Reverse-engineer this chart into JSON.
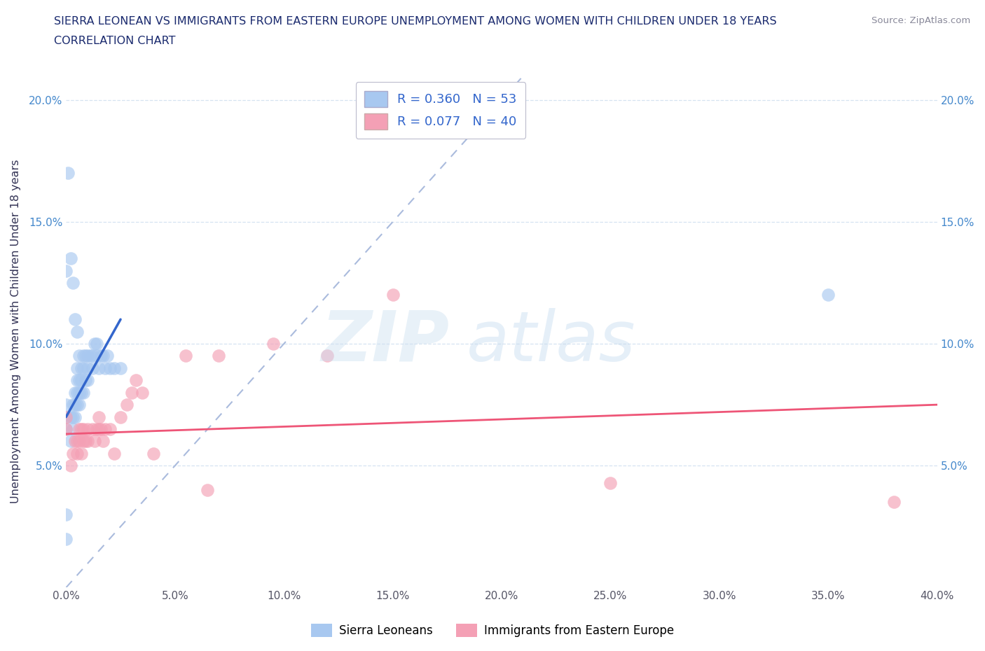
{
  "title_line1": "SIERRA LEONEAN VS IMMIGRANTS FROM EASTERN EUROPE UNEMPLOYMENT AMONG WOMEN WITH CHILDREN UNDER 18 YEARS",
  "title_line2": "CORRELATION CHART",
  "source": "Source: ZipAtlas.com",
  "ylabel": "Unemployment Among Women with Children Under 18 years",
  "xlim": [
    0.0,
    0.4
  ],
  "ylim": [
    0.0,
    0.21
  ],
  "xticks": [
    0.0,
    0.05,
    0.1,
    0.15,
    0.2,
    0.25,
    0.3,
    0.35,
    0.4
  ],
  "yticks": [
    0.05,
    0.1,
    0.15,
    0.2
  ],
  "ytick_labels": [
    "5.0%",
    "10.0%",
    "15.0%",
    "20.0%"
  ],
  "xtick_labels": [
    "0.0%",
    "5.0%",
    "10.0%",
    "15.0%",
    "20.0%",
    "25.0%",
    "30.0%",
    "35.0%",
    "40.0%"
  ],
  "blue_R": 0.36,
  "blue_N": 53,
  "pink_R": 0.077,
  "pink_N": 40,
  "blue_color": "#a8c8f0",
  "pink_color": "#f4a0b5",
  "blue_line_color": "#3366cc",
  "pink_line_color": "#ee5577",
  "diagonal_color": "#aabbdd",
  "legend_label_blue": "Sierra Leoneans",
  "legend_label_pink": "Immigrants from Eastern Europe",
  "blue_scatter_x": [
    0.0,
    0.0,
    0.0,
    0.0,
    0.0,
    0.002,
    0.002,
    0.003,
    0.003,
    0.003,
    0.004,
    0.004,
    0.004,
    0.005,
    0.005,
    0.005,
    0.005,
    0.006,
    0.006,
    0.006,
    0.007,
    0.007,
    0.007,
    0.008,
    0.008,
    0.008,
    0.009,
    0.009,
    0.01,
    0.01,
    0.01,
    0.011,
    0.012,
    0.012,
    0.013,
    0.014,
    0.014,
    0.015,
    0.016,
    0.017,
    0.018,
    0.019,
    0.02,
    0.022,
    0.025,
    0.0,
    0.001,
    0.002,
    0.003,
    0.004,
    0.005,
    0.006,
    0.35
  ],
  "blue_scatter_y": [
    0.02,
    0.03,
    0.065,
    0.07,
    0.075,
    0.06,
    0.07,
    0.065,
    0.07,
    0.075,
    0.07,
    0.075,
    0.08,
    0.075,
    0.08,
    0.085,
    0.09,
    0.075,
    0.08,
    0.085,
    0.08,
    0.085,
    0.09,
    0.08,
    0.09,
    0.095,
    0.085,
    0.095,
    0.085,
    0.09,
    0.095,
    0.095,
    0.09,
    0.095,
    0.1,
    0.095,
    0.1,
    0.09,
    0.095,
    0.095,
    0.09,
    0.095,
    0.09,
    0.09,
    0.09,
    0.13,
    0.17,
    0.135,
    0.125,
    0.11,
    0.105,
    0.095,
    0.12
  ],
  "pink_scatter_x": [
    0.0,
    0.0,
    0.002,
    0.003,
    0.004,
    0.005,
    0.005,
    0.006,
    0.006,
    0.007,
    0.007,
    0.008,
    0.008,
    0.009,
    0.01,
    0.01,
    0.012,
    0.013,
    0.014,
    0.015,
    0.015,
    0.016,
    0.017,
    0.018,
    0.02,
    0.022,
    0.025,
    0.028,
    0.03,
    0.032,
    0.035,
    0.04,
    0.055,
    0.065,
    0.07,
    0.095,
    0.12,
    0.15,
    0.25,
    0.38
  ],
  "pink_scatter_y": [
    0.065,
    0.07,
    0.05,
    0.055,
    0.06,
    0.055,
    0.06,
    0.06,
    0.065,
    0.055,
    0.065,
    0.06,
    0.065,
    0.06,
    0.06,
    0.065,
    0.065,
    0.06,
    0.065,
    0.065,
    0.07,
    0.065,
    0.06,
    0.065,
    0.065,
    0.055,
    0.07,
    0.075,
    0.08,
    0.085,
    0.08,
    0.055,
    0.095,
    0.04,
    0.095,
    0.1,
    0.095,
    0.12,
    0.043,
    0.035
  ],
  "blue_trend_x": [
    0.0,
    0.025
  ],
  "blue_trend_y_start": 0.07,
  "blue_trend_y_end": 0.11,
  "pink_trend_x_start": 0.0,
  "pink_trend_x_end": 0.4,
  "pink_trend_y_start": 0.063,
  "pink_trend_y_end": 0.075
}
